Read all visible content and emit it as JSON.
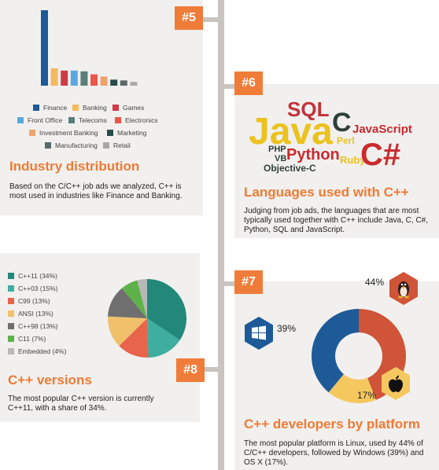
{
  "sections": {
    "s5": {
      "tag": "#5",
      "title": "Industry distribution",
      "desc": "Based on the C/C++ job ads we analyzed, C++ is most used in industries like Finance and Banking."
    },
    "s6": {
      "tag": "#6",
      "title": "Languages used with C++",
      "desc": "Judging from job ads, the languages that are most typically used together with C++ include Java, C, C#, Python, SQL and JavaScript."
    },
    "s7": {
      "tag": "#7",
      "title": "C++ developers by platform",
      "desc": "The most popular platform is Linux, used by 44% of C/C++ developers, followed by Windows (39%) and OS X (17%)."
    },
    "s8": {
      "tag": "#8",
      "title": "C++ versions",
      "desc": "The most popular C++ version is currently C++11, with a share of 34%."
    }
  },
  "wordcloud": [
    {
      "text": "SQL",
      "color": "#c0333b"
    },
    {
      "text": "Java",
      "color": "#ebc21e"
    },
    {
      "text": "C",
      "color": "#2f3f3a"
    },
    {
      "text": "JavaScript",
      "color": "#c92a2e"
    },
    {
      "text": "Perl",
      "color": "#ebc21e"
    },
    {
      "text": "PHP",
      "color": "#2f3f3a"
    },
    {
      "text": "Python",
      "color": "#c92a2e"
    },
    {
      "text": "VB",
      "color": "#2f3f3a"
    },
    {
      "text": "Ruby",
      "color": "#ebc21e"
    },
    {
      "text": "C#",
      "color": "#c92a2e"
    },
    {
      "text": "Objective-C",
      "color": "#2f3f3a"
    }
  ],
  "platform_icons": {
    "linux": "linux-penguin-icon",
    "windows": "windows-logo-icon",
    "osx": "apple-logo-icon",
    "linux_bg": "#cf5438",
    "windows_bg": "#1e5a98",
    "osx_bg": "#f5c75f"
  },
  "chart_data": [
    {
      "type": "bar",
      "title": "",
      "categories": [
        "Finance",
        "Banking",
        "Games",
        "Front Office",
        "Telecoms",
        "Electronics",
        "Investment Banking",
        "Marketing",
        "Manufacturing",
        "Retail"
      ],
      "values": [
        100,
        23,
        20,
        20,
        19,
        15,
        12,
        8,
        7,
        5
      ],
      "colors": [
        "#1e5a98",
        "#f5b95f",
        "#cf3a48",
        "#5aa8e0",
        "#5a7e7a",
        "#e8574a",
        "#f0a26b",
        "#2a4a4a",
        "#5a6a6a",
        "#a8a8a8"
      ],
      "ylim": [
        0,
        100
      ]
    },
    {
      "type": "pie",
      "title": "",
      "labels": [
        "C++11 (34%)",
        "C++03 (15%)",
        "C99 (13%)",
        "ANSI (13%)",
        "C++98 (13%)",
        "C11 (7%)",
        "Embedded (4%)"
      ],
      "values": [
        34,
        15,
        13,
        13,
        13,
        7,
        4
      ],
      "colors": [
        "#22887a",
        "#3fada0",
        "#e8644a",
        "#f0c06a",
        "#6f6f6f",
        "#5fb14a",
        "#b8b8b8"
      ]
    },
    {
      "type": "pie",
      "title": "",
      "labels": [
        "44%",
        "17%",
        "39%"
      ],
      "series_names": [
        "Linux",
        "OS X",
        "Windows"
      ],
      "values": [
        44,
        17,
        39
      ],
      "colors": [
        "#cf5438",
        "#f5c75f",
        "#1e5a98"
      ]
    }
  ]
}
